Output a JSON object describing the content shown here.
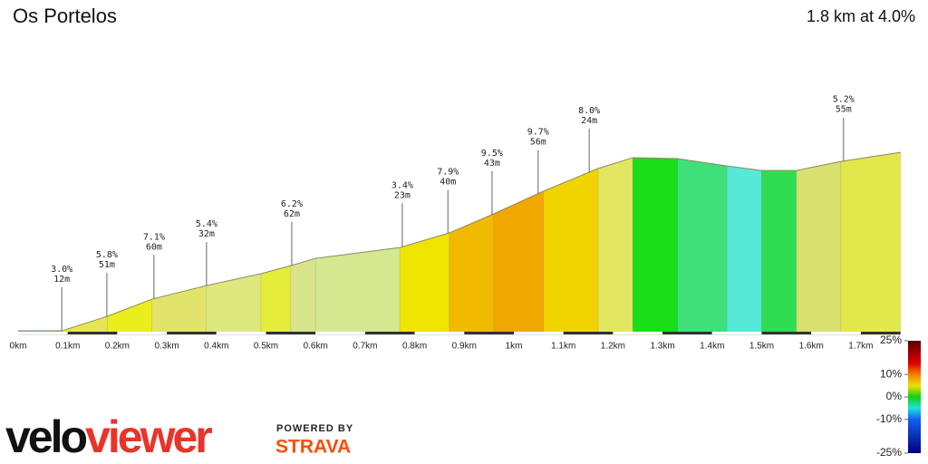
{
  "chart_data": {
    "type": "elevation-profile",
    "title": "Os Portelos",
    "subtitle": "1.8 km at 4.0%",
    "x": [
      0,
      0.088,
      0.18,
      0.27,
      0.38,
      0.49,
      0.55,
      0.6,
      0.77,
      0.87,
      0.96,
      1.06,
      1.17,
      1.24,
      1.33,
      1.43,
      1.5,
      1.57,
      1.66,
      1.78
    ],
    "values": [
      0.7,
      0.7,
      6.5,
      13.3,
      18.7,
      23.4,
      26.6,
      29.5,
      33.8,
      39.6,
      47.2,
      56.2,
      65.2,
      69.5,
      69.1,
      66.2,
      64.4,
      64.4,
      68,
      71.6
    ],
    "segment_colors": [
      "#5fcfb0",
      "#e4e650",
      "#eaee1c",
      "#e1e36a",
      "#dde87e",
      "#e6ec3a",
      "#d8e48c",
      "#d4e890",
      "#eee400",
      "#efba00",
      "#f0a800",
      "#f0d400",
      "#e2e660",
      "#18df18",
      "#3fe07a",
      "#58e8d8",
      "#30dd50",
      "#d8e070",
      "#e2e84a"
    ],
    "ylim": [
      0,
      80
    ],
    "xlim": [
      0,
      1.8
    ],
    "xticks": [
      {
        "value": 0,
        "label": "0km"
      },
      {
        "value": 0.1,
        "label": "0.1km"
      },
      {
        "value": 0.2,
        "label": "0.2km"
      },
      {
        "value": 0.3,
        "label": "0.3km"
      },
      {
        "value": 0.4,
        "label": "0.4km"
      },
      {
        "value": 0.5,
        "label": "0.5km"
      },
      {
        "value": 0.6,
        "label": "0.6km"
      },
      {
        "value": 0.7,
        "label": "0.7km"
      },
      {
        "value": 0.8,
        "label": "0.8km"
      },
      {
        "value": 0.9,
        "label": "0.9km"
      },
      {
        "value": 1,
        "label": "1km"
      },
      {
        "value": 1.1,
        "label": "1.1km"
      },
      {
        "value": 1.2,
        "label": "1.2km"
      },
      {
        "value": 1.3,
        "label": "1.3km"
      },
      {
        "value": 1.4,
        "label": "1.4km"
      },
      {
        "value": 1.5,
        "label": "1.5km"
      },
      {
        "value": 1.6,
        "label": "1.6km"
      },
      {
        "value": 1.7,
        "label": "1.7km"
      }
    ],
    "annotations": [
      {
        "x": 0.088,
        "grade": "3.0%",
        "length": "12m"
      },
      {
        "x": 0.179,
        "grade": "5.8%",
        "length": "51m"
      },
      {
        "x": 0.274,
        "grade": "7.1%",
        "length": "60m"
      },
      {
        "x": 0.38,
        "grade": "5.4%",
        "length": "32m"
      },
      {
        "x": 0.552,
        "grade": "6.2%",
        "length": "62m"
      },
      {
        "x": 0.775,
        "grade": "3.4%",
        "length": "23m"
      },
      {
        "x": 0.867,
        "grade": "7.9%",
        "length": "40m"
      },
      {
        "x": 0.956,
        "grade": "9.5%",
        "length": "43m"
      },
      {
        "x": 1.049,
        "grade": "9.7%",
        "length": "56m"
      },
      {
        "x": 1.152,
        "grade": "8.0%",
        "length": "24m"
      },
      {
        "x": 1.665,
        "grade": "5.2%",
        "length": "55m"
      }
    ],
    "colorbar": {
      "lim": [
        -25,
        25
      ],
      "ticks": [
        {
          "value": 25,
          "label": "25%"
        },
        {
          "value": 10,
          "label": "10%"
        },
        {
          "value": 0,
          "label": "0%"
        },
        {
          "value": -10,
          "label": "-10%"
        },
        {
          "value": -25,
          "label": "-25%"
        }
      ]
    }
  },
  "logo": {
    "velo": "velo",
    "viewer": "viewer",
    "powered_by": "POWERED BY",
    "strava": "STRAVA"
  }
}
